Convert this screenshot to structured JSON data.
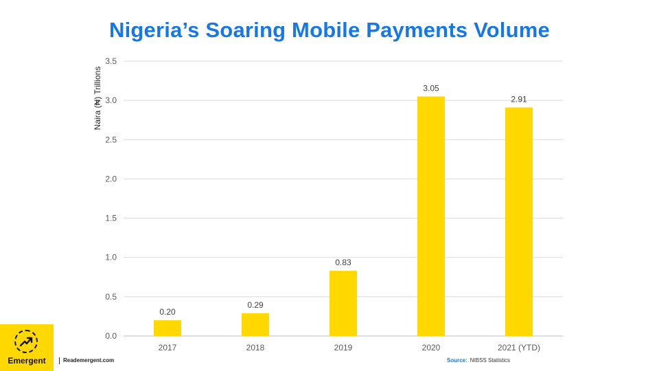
{
  "title": "Nigeria’s Soaring Mobile Payments Volume",
  "chart_data": {
    "type": "bar",
    "categories": [
      "2017",
      "2018",
      "2019",
      "2020",
      "2021 (YTD)"
    ],
    "values": [
      0.2,
      0.29,
      0.83,
      3.05,
      2.91
    ],
    "data_labels": [
      "0.20",
      "0.29",
      "0.83",
      "3.05",
      "2.91"
    ],
    "ylabel": "Naira (₦) Trillions",
    "xlabel": "",
    "ylim": [
      0,
      3.5
    ],
    "yticks": [
      "0.0",
      "0.5",
      "1.0",
      "1.5",
      "2.0",
      "2.5",
      "3.0",
      "3.5"
    ],
    "grid": true,
    "bar_color": "#ffd800"
  },
  "brand": {
    "logo_text": "Emergent",
    "website": "Reademergent.com",
    "accent": "#ffd800",
    "title_color": "#1677e6"
  },
  "source": {
    "label": "Source:",
    "text": "NIBSS Statistics"
  }
}
